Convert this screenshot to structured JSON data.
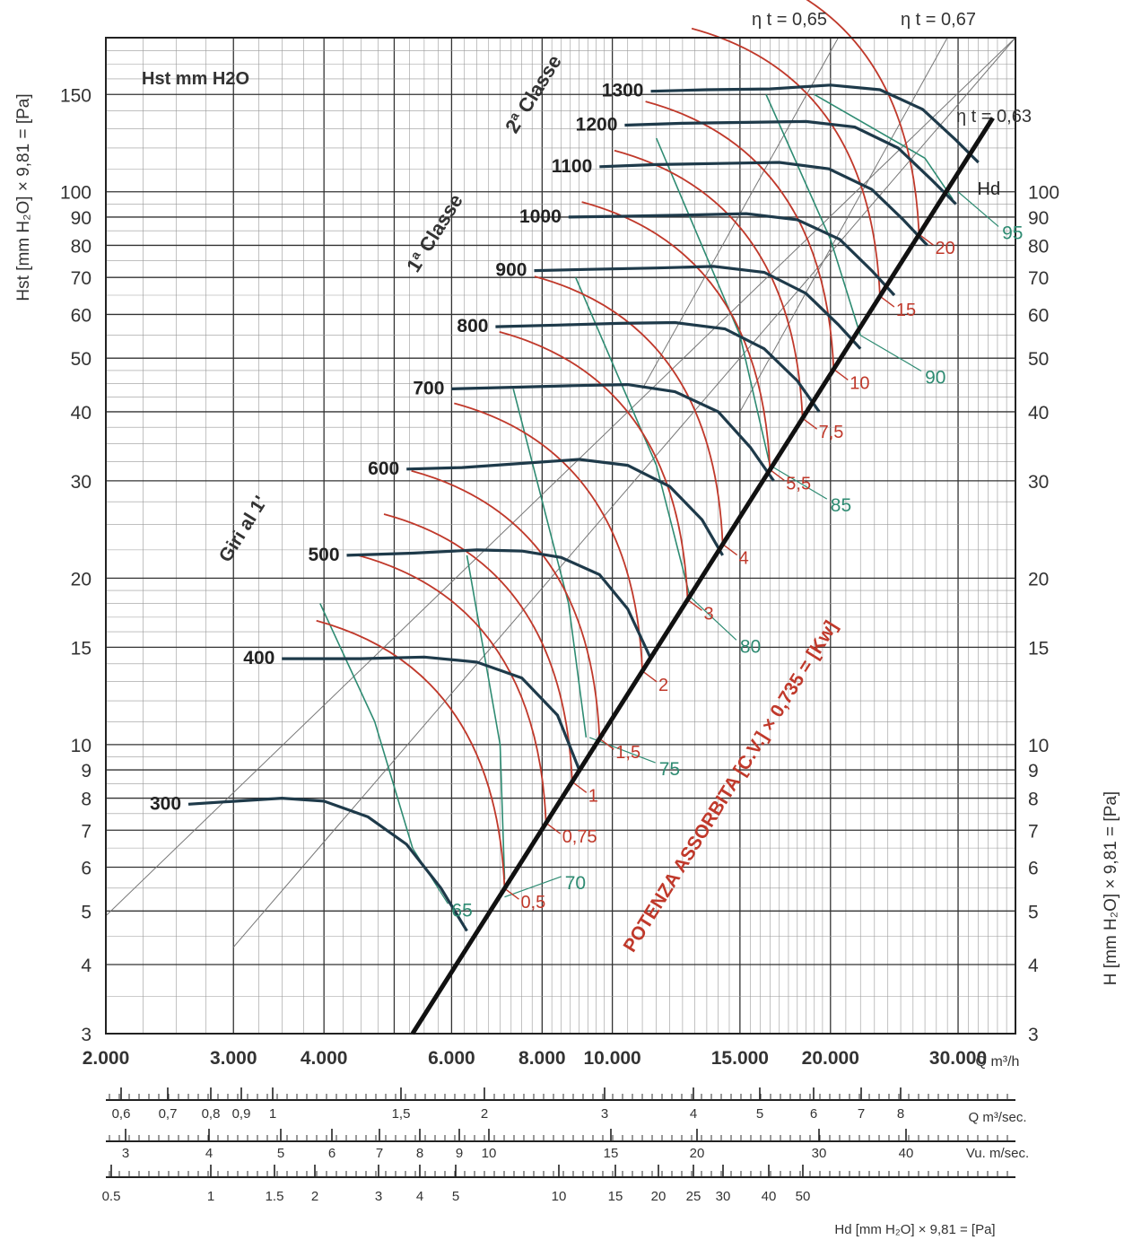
{
  "chart_data": {
    "type": "line",
    "title": "Hst mm H2O",
    "x_scale": "log",
    "y_scale": "log",
    "xlim": [
      2000,
      36000
    ],
    "ylim": [
      3,
      190
    ],
    "grid": true,
    "x_ticks": [
      "2.000",
      "3.000",
      "4.000",
      "6.000",
      "8.000",
      "10.000",
      "15.000",
      "20.000",
      "30.000"
    ],
    "x_tick_values": [
      2000,
      3000,
      4000,
      6000,
      8000,
      10000,
      15000,
      20000,
      30000
    ],
    "x_unit": "Q m³/h",
    "y_ticks": [
      "3",
      "4",
      "5",
      "6",
      "7",
      "8",
      "9",
      "10",
      "15",
      "20",
      "30",
      "40",
      "50",
      "60",
      "70",
      "80",
      "90",
      "100",
      "150"
    ],
    "y_tick_values": [
      3,
      4,
      5,
      6,
      7,
      8,
      9,
      10,
      15,
      20,
      30,
      40,
      50,
      60,
      70,
      80,
      90,
      100,
      150
    ],
    "right_y_ticks": [
      "3",
      "4",
      "5",
      "6",
      "7",
      "8",
      "9",
      "10",
      "15",
      "20",
      "30",
      "40",
      "50",
      "60",
      "70",
      "80",
      "90",
      "100"
    ],
    "right_y_tick_values": [
      3,
      4,
      5,
      6,
      7,
      8,
      9,
      10,
      15,
      20,
      30,
      40,
      50,
      60,
      70,
      80,
      90,
      100
    ],
    "ylabel_left": "Hst [mm H₂O] × 9,81 = [Pa]",
    "ylabel_right": "H [mm H₂O] × 9,81 = [Pa]",
    "secondary_scales": [
      {
        "unit": "Q m³/sec.",
        "ticks": [
          "0,6",
          "0,7",
          "0,8",
          "0,9",
          "1",
          "1,5",
          "2",
          "3",
          "4",
          "5",
          "6",
          "7",
          "8"
        ],
        "values": [
          0.6,
          0.7,
          0.8,
          0.9,
          1,
          1.5,
          2,
          3,
          4,
          5,
          6,
          7,
          8
        ]
      },
      {
        "unit": "Vu. m/sec.",
        "ticks": [
          "3",
          "4",
          "5",
          "6",
          "7",
          "8",
          "9",
          "10",
          "15",
          "20",
          "30",
          "40"
        ]
      },
      {
        "unit": "Hd [mm H₂O] × 9,81 = [Pa]",
        "ticks": [
          "0.5",
          "1",
          "1.5",
          "2",
          "3",
          "4",
          "5",
          "10",
          "15",
          "20",
          "25",
          "30",
          "40",
          "50"
        ]
      }
    ],
    "series": [
      {
        "name": "300",
        "kind": "speed",
        "x": [
          2600,
          3500,
          4000,
          4600,
          5200,
          5800,
          6300
        ],
        "y": [
          7.8,
          8.0,
          7.9,
          7.4,
          6.6,
          5.5,
          4.6
        ]
      },
      {
        "name": "400",
        "kind": "speed",
        "x": [
          3500,
          4500,
          5500,
          6500,
          7500,
          8400,
          9000
        ],
        "y": [
          14.3,
          14.3,
          14.4,
          14.1,
          13.2,
          11.3,
          9.0
        ]
      },
      {
        "name": "500",
        "kind": "speed",
        "x": [
          4300,
          5300,
          6500,
          7500,
          8500,
          9600,
          10500,
          11300
        ],
        "y": [
          22.0,
          22.2,
          22.5,
          22.4,
          21.8,
          20.3,
          17.6,
          14.3
        ]
      },
      {
        "name": "600",
        "kind": "speed",
        "x": [
          5200,
          6200,
          7600,
          9000,
          10500,
          12000,
          13300,
          14200
        ],
        "y": [
          31.5,
          31.7,
          32.3,
          32.8,
          32.0,
          29.3,
          25.5,
          22.0
        ]
      },
      {
        "name": "700",
        "kind": "speed",
        "x": [
          6000,
          7300,
          8800,
          10500,
          12200,
          14000,
          15500,
          16700
        ],
        "y": [
          44.0,
          44.3,
          44.6,
          44.8,
          43.5,
          40.0,
          34.5,
          30.0
        ]
      },
      {
        "name": "800",
        "kind": "speed",
        "x": [
          6900,
          8400,
          10200,
          12200,
          14300,
          16200,
          18000,
          19300
        ],
        "y": [
          57.0,
          57.4,
          57.8,
          58.0,
          56.5,
          52.0,
          45.5,
          40.0
        ]
      },
      {
        "name": "900",
        "kind": "speed",
        "x": [
          7800,
          9300,
          11500,
          13800,
          16200,
          18500,
          20500,
          22000
        ],
        "y": [
          72.0,
          72.4,
          72.8,
          73.3,
          71.5,
          65.5,
          57.5,
          52.0
        ]
      },
      {
        "name": "1000",
        "kind": "speed",
        "x": [
          8700,
          10400,
          12800,
          15300,
          18000,
          20600,
          22800,
          24500
        ],
        "y": [
          90.0,
          90.3,
          90.8,
          91.3,
          89.0,
          82.0,
          72.0,
          65.0
        ]
      },
      {
        "name": "1100",
        "kind": "speed",
        "x": [
          9600,
          11500,
          14000,
          17000,
          19900,
          22800,
          25200,
          27200
        ],
        "y": [
          111,
          112,
          112.5,
          113,
          110,
          101,
          89,
          80
        ]
      },
      {
        "name": "1200",
        "kind": "speed",
        "x": [
          10400,
          12500,
          15300,
          18500,
          21600,
          24800,
          27600,
          29800
        ],
        "y": [
          132,
          133,
          133.5,
          134,
          131,
          120,
          105,
          95
        ]
      },
      {
        "name": "1300",
        "kind": "speed",
        "x": [
          11300,
          13500,
          16500,
          20000,
          23400,
          26800,
          29800,
          32000
        ],
        "y": [
          152,
          153,
          153.5,
          156,
          153,
          141,
          124,
          113
        ]
      },
      {
        "name": "Hd",
        "kind": "duct",
        "x": [
          5300,
          33500
        ],
        "y": [
          3.0,
          136
        ]
      },
      {
        "name": "Giri al 1'",
        "kind": "guide",
        "x": [
          2000,
          36000
        ],
        "y": [
          4.9,
          190
        ]
      },
      {
        "name": "1ª Classe — 2ª Classe",
        "kind": "guide",
        "x": [
          3000,
          36000
        ],
        "y": [
          4.3,
          190
        ]
      },
      {
        "name": "η t = 0,65",
        "kind": "guide",
        "x": [
          11000,
          20500
        ],
        "y": [
          44,
          190
        ]
      },
      {
        "name": "η t = 0,67",
        "kind": "guide",
        "x": [
          15000,
          29000
        ],
        "y": [
          40,
          190
        ]
      }
    ],
    "power_curves": [
      "0,5",
      "0,75",
      "1",
      "1,5",
      "2",
      "3",
      "4",
      "5,5",
      "7,5",
      "10",
      "15",
      "20"
    ],
    "power_label": "POTENZA ASSORBITA [C.V.] × 0,735 = [Kw]",
    "efficiency_labels": [
      "65",
      "70",
      "75",
      "80",
      "85",
      "90",
      "95"
    ],
    "text_labels": {
      "classe1": "1ª Classe",
      "classe2": "2ª Classe",
      "giri": "Giri al 1'",
      "eta65": "η t = 0,65",
      "eta67": "η t = 0,67",
      "eta63": "η t = 0,63",
      "hd": "Hd"
    }
  }
}
